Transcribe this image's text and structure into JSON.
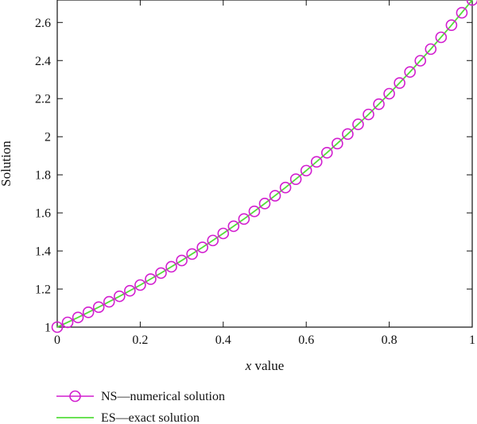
{
  "chart_data": {
    "type": "line",
    "xlabel_var": "x",
    "xlabel_rest": " value",
    "ylabel": "Solution",
    "xlim": [
      0,
      1
    ],
    "ylim": [
      1,
      2.718
    ],
    "xticks": [
      "0",
      "0.2",
      "0.4",
      "0.6",
      "0.8",
      "1"
    ],
    "yticks": [
      "1",
      "1.2",
      "1.4",
      "1.6",
      "1.8",
      "2",
      "2.2",
      "2.4",
      "2.6"
    ],
    "grid": false,
    "legend_position": "bottom-left",
    "series": [
      {
        "name": "NS—numerical solution",
        "style": "markers",
        "color": "#d21ecf",
        "x": [
          0,
          0.025,
          0.05,
          0.075,
          0.1,
          0.125,
          0.15,
          0.175,
          0.2,
          0.225,
          0.25,
          0.275,
          0.3,
          0.325,
          0.35,
          0.375,
          0.4,
          0.425,
          0.45,
          0.475,
          0.5,
          0.525,
          0.55,
          0.575,
          0.6,
          0.625,
          0.65,
          0.675,
          0.7,
          0.725,
          0.75,
          0.775,
          0.8,
          0.825,
          0.85,
          0.875,
          0.9,
          0.925,
          0.95,
          0.975,
          1
        ],
        "y": [
          1.0,
          1.025,
          1.051,
          1.078,
          1.105,
          1.133,
          1.162,
          1.191,
          1.221,
          1.252,
          1.284,
          1.317,
          1.35,
          1.384,
          1.419,
          1.455,
          1.492,
          1.53,
          1.568,
          1.608,
          1.649,
          1.69,
          1.733,
          1.777,
          1.822,
          1.868,
          1.916,
          1.964,
          2.014,
          2.065,
          2.117,
          2.171,
          2.226,
          2.282,
          2.34,
          2.399,
          2.46,
          2.522,
          2.586,
          2.651,
          2.718
        ]
      },
      {
        "name": "ES—exact solution",
        "style": "line",
        "color": "#55dd3b",
        "x": [
          0,
          0.05,
          0.1,
          0.15,
          0.2,
          0.25,
          0.3,
          0.35,
          0.4,
          0.45,
          0.5,
          0.55,
          0.6,
          0.65,
          0.7,
          0.75,
          0.8,
          0.85,
          0.9,
          0.95,
          1
        ],
        "y": [
          1.0,
          1.051,
          1.105,
          1.162,
          1.221,
          1.284,
          1.35,
          1.419,
          1.492,
          1.568,
          1.649,
          1.733,
          1.822,
          1.916,
          2.014,
          2.117,
          2.226,
          2.34,
          2.46,
          2.586,
          2.718
        ]
      }
    ]
  }
}
